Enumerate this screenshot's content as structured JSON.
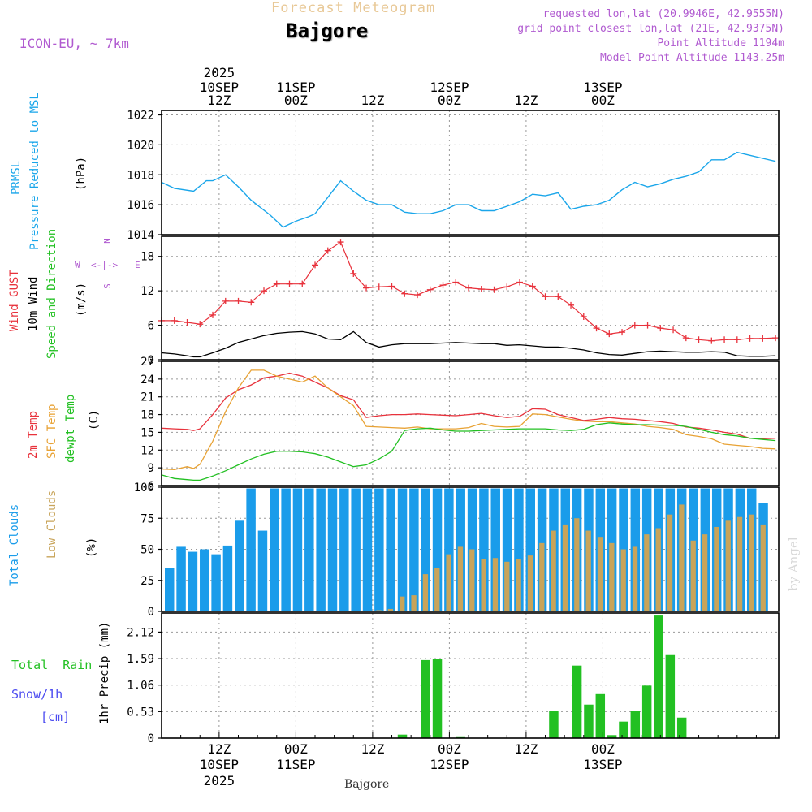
{
  "header": {
    "banner": "Forecast Meteogram",
    "location": "Bajgore",
    "model": "ICON-EU, ~ 7km",
    "info": [
      "requested lon,lat (20.9946E, 42.9555N)",
      "grid point closest lon,lat (21E, 42.9375N)",
      "Point Altitude 1194m",
      "Model Point Altitude 1143.25m"
    ]
  },
  "footer": {
    "location": "Bajgore",
    "watermark": "by Angel"
  },
  "colors": {
    "pressure": "#1aa6ea",
    "wind_speed": "#000000",
    "gust": "#e8323c",
    "temp": "#e8323c",
    "sfc_temp": "#e8a234",
    "dewpoint": "#22c022",
    "total_clouds": "#1a9cea",
    "low_clouds": "#c8a45a",
    "rain": "#22c022",
    "snow": "#4a4af0",
    "info_text": "#b05ad0",
    "banner": "#e8c896"
  },
  "time_axis": {
    "top": [
      {
        "lines": [
          "2025",
          "10SEP",
          "12Z"
        ]
      },
      {
        "lines": [
          "11SEP",
          "00Z"
        ]
      },
      {
        "lines": [
          "12Z"
        ]
      },
      {
        "lines": [
          "12SEP",
          "00Z"
        ]
      },
      {
        "lines": [
          "12Z"
        ]
      },
      {
        "lines": [
          "13SEP",
          "00Z"
        ]
      }
    ],
    "bottom": [
      {
        "lines": [
          "12Z",
          "10SEP",
          "2025"
        ]
      },
      {
        "lines": [
          "00Z",
          "11SEP"
        ]
      },
      {
        "lines": [
          "12Z"
        ]
      },
      {
        "lines": [
          "00Z",
          "12SEP"
        ]
      },
      {
        "lines": [
          "12Z"
        ]
      },
      {
        "lines": [
          "00Z",
          "13SEP"
        ]
      }
    ]
  },
  "panels": {
    "pressure": {
      "label_a": "PRMSL",
      "label_b": "Pressure Reduced to MSL",
      "unit": "(hPa)",
      "ticks": [
        "1014",
        "1016",
        "1018",
        "1020",
        "1022"
      ]
    },
    "wind": {
      "label_gust": "Wind GUST",
      "label_wind": "10m Wind",
      "label_dir": "Speed and Direction",
      "unit": "(m/s)",
      "ticks": [
        "0",
        "6",
        "12",
        "18"
      ],
      "compass": {
        "n": "N",
        "s": "S",
        "w": "W",
        "e": "E",
        "arrow": "<-|->"
      }
    },
    "temp": {
      "label_t": "2m Temp",
      "label_sfc": "SFC Temp",
      "label_dew": "dewpt Temp",
      "unit": "(C)",
      "ticks": [
        "6",
        "9",
        "12",
        "15",
        "18",
        "21",
        "24",
        "27"
      ]
    },
    "clouds": {
      "label_total": "Total Clouds",
      "label_low": "Low Clouds",
      "unit": "(%)",
      "ticks": [
        "0",
        "25",
        "50",
        "75",
        "100"
      ]
    },
    "precip": {
      "label_rain": "Total  Rain",
      "label_snow": "Snow/1h",
      "label_snow_unit": "[cm]",
      "label_axis": "1hr Precip (mm)",
      "ticks": [
        "0",
        "0.53",
        "1.06",
        "1.59",
        "2.12"
      ]
    }
  },
  "chart_data": [
    {
      "type": "line",
      "name": "pressure",
      "x_unit": "hours since 10SEP 03Z",
      "ylim": [
        1014,
        1022.3
      ],
      "series": [
        {
          "name": "PRMSL",
          "x": [
            0,
            2,
            5,
            7,
            8,
            10,
            12,
            14,
            17,
            19,
            21,
            23,
            24,
            26,
            28,
            30,
            32,
            34,
            36,
            38,
            40,
            42,
            44,
            46,
            48,
            50,
            52,
            54,
            56,
            58,
            60,
            62,
            64,
            66,
            68,
            70,
            72,
            74,
            76,
            78,
            80,
            82,
            84,
            86,
            88,
            90,
            92,
            94,
            96
          ],
          "y": [
            1017.5,
            1017.1,
            1016.9,
            1017.6,
            1017.6,
            1018.0,
            1017.2,
            1016.3,
            1015.3,
            1014.5,
            1014.9,
            1015.2,
            1015.4,
            1016.5,
            1017.6,
            1016.9,
            1016.3,
            1016.0,
            1016.0,
            1015.5,
            1015.4,
            1015.4,
            1015.6,
            1016.0,
            1016.0,
            1015.6,
            1015.6,
            1015.9,
            1016.2,
            1016.7,
            1016.6,
            1016.8,
            1015.7,
            1015.9,
            1016.0,
            1016.3,
            1017.0,
            1017.5,
            1017.2,
            1017.4,
            1017.7,
            1017.9,
            1018.2,
            1019.0,
            1019.0,
            1019.5,
            1019.3,
            1019.1,
            1018.9
          ]
        }
      ]
    },
    {
      "type": "line",
      "name": "wind",
      "ylim": [
        0,
        21.5
      ],
      "series": [
        {
          "name": "Wind GUST",
          "x": [
            0,
            2,
            4,
            6,
            8,
            10,
            12,
            14,
            16,
            18,
            20,
            22,
            24,
            26,
            28,
            30,
            32,
            34,
            36,
            38,
            40,
            42,
            44,
            46,
            48,
            50,
            52,
            54,
            56,
            58,
            60,
            62,
            64,
            66,
            68,
            70,
            72,
            74,
            76,
            78,
            80,
            82,
            84,
            86,
            88,
            90,
            92,
            94,
            96
          ],
          "y": [
            6.8,
            6.8,
            6.5,
            6.2,
            7.8,
            10.2,
            10.2,
            10.0,
            12.0,
            13.2,
            13.2,
            13.2,
            16.5,
            19.0,
            20.5,
            15.0,
            12.5,
            12.7,
            12.8,
            11.5,
            11.3,
            12.2,
            13.0,
            13.5,
            12.5,
            12.3,
            12.2,
            12.7,
            13.5,
            12.8,
            11.0,
            11.0,
            9.5,
            7.5,
            5.5,
            4.5,
            4.8,
            6.0,
            6.0,
            5.5,
            5.2,
            3.8,
            3.5,
            3.3,
            3.5,
            3.5,
            3.7,
            3.7,
            3.8
          ]
        },
        {
          "name": "10m Wind",
          "x": [
            0,
            2,
            4,
            5,
            6,
            8,
            10,
            12,
            14,
            16,
            18,
            20,
            22,
            24,
            26,
            28,
            30,
            32,
            34,
            36,
            38,
            40,
            42,
            44,
            46,
            48,
            50,
            52,
            54,
            56,
            58,
            60,
            62,
            64,
            66,
            68,
            70,
            72,
            74,
            76,
            78,
            80,
            82,
            84,
            86,
            88,
            90,
            92,
            94,
            96
          ],
          "y": [
            1.2,
            1.0,
            0.7,
            0.5,
            0.5,
            1.2,
            2.0,
            3.0,
            3.6,
            4.2,
            4.6,
            4.8,
            4.9,
            4.5,
            3.6,
            3.5,
            4.9,
            3.0,
            2.2,
            2.6,
            2.8,
            2.8,
            2.8,
            2.9,
            3.0,
            2.9,
            2.8,
            2.8,
            2.5,
            2.6,
            2.4,
            2.2,
            2.2,
            2.0,
            1.7,
            1.2,
            0.9,
            0.8,
            1.1,
            1.4,
            1.5,
            1.4,
            1.3,
            1.3,
            1.4,
            1.3,
            0.7,
            0.6,
            0.6,
            0.7
          ]
        }
      ]
    },
    {
      "type": "line",
      "name": "temperature",
      "ylim": [
        6,
        27
      ],
      "series": [
        {
          "name": "2m Temp",
          "x": [
            0,
            2,
            4,
            5,
            6,
            8,
            10,
            12,
            14,
            16,
            18,
            20,
            22,
            24,
            26,
            28,
            30,
            32,
            34,
            36,
            38,
            40,
            42,
            44,
            46,
            48,
            50,
            52,
            54,
            56,
            58,
            60,
            62,
            64,
            66,
            68,
            70,
            72,
            74,
            76,
            78,
            80,
            82,
            84,
            86,
            88,
            90,
            92,
            94,
            96
          ],
          "y": [
            15.7,
            15.6,
            15.5,
            15.3,
            15.6,
            18.0,
            20.8,
            22.2,
            23.0,
            24.2,
            24.5,
            25.0,
            24.5,
            23.5,
            22.5,
            21.2,
            20.5,
            17.5,
            17.8,
            18.0,
            18.0,
            18.1,
            18.0,
            17.9,
            17.8,
            18.0,
            18.2,
            17.8,
            17.5,
            17.7,
            19.0,
            18.9,
            18.0,
            17.5,
            17.0,
            17.2,
            17.5,
            17.3,
            17.2,
            17.0,
            16.8,
            16.5,
            15.9,
            15.7,
            15.4,
            15.0,
            14.7,
            14.0,
            13.9,
            14.0
          ]
        },
        {
          "name": "SFC Temp",
          "x": [
            0,
            2,
            4,
            5,
            6,
            8,
            10,
            12,
            14,
            16,
            18,
            20,
            22,
            24,
            26,
            28,
            30,
            32,
            34,
            36,
            38,
            40,
            42,
            44,
            46,
            48,
            50,
            52,
            54,
            56,
            58,
            60,
            62,
            64,
            66,
            68,
            70,
            72,
            74,
            76,
            78,
            80,
            82,
            84,
            86,
            88,
            90,
            92,
            94,
            96
          ],
          "y": [
            8.8,
            8.7,
            9.2,
            8.9,
            9.6,
            13.5,
            18.5,
            22.5,
            25.5,
            25.5,
            24.5,
            24.0,
            23.5,
            24.5,
            22.5,
            21.0,
            19.5,
            16.0,
            15.9,
            15.8,
            15.7,
            15.9,
            15.6,
            15.6,
            15.6,
            15.8,
            16.5,
            16.0,
            15.9,
            16.0,
            18.1,
            18.0,
            17.6,
            17.2,
            16.9,
            16.8,
            16.8,
            16.6,
            16.4,
            16.0,
            15.8,
            15.5,
            14.6,
            14.3,
            13.9,
            13.0,
            12.8,
            12.6,
            12.3,
            12.2
          ]
        },
        {
          "name": "dewpt Temp",
          "x": [
            0,
            2,
            4,
            5,
            6,
            8,
            10,
            12,
            14,
            16,
            18,
            20,
            22,
            24,
            26,
            28,
            30,
            32,
            34,
            36,
            38,
            40,
            42,
            44,
            46,
            48,
            50,
            52,
            54,
            56,
            58,
            60,
            62,
            64,
            66,
            68,
            70,
            72,
            74,
            76,
            78,
            80,
            82,
            84,
            86,
            88,
            90,
            92,
            94,
            96
          ],
          "y": [
            7.8,
            7.2,
            7.0,
            6.9,
            6.9,
            7.6,
            8.5,
            9.5,
            10.5,
            11.3,
            11.8,
            11.8,
            11.7,
            11.4,
            10.8,
            10.0,
            9.2,
            9.5,
            10.5,
            11.8,
            15.3,
            15.6,
            15.7,
            15.4,
            15.2,
            15.2,
            15.3,
            15.4,
            15.5,
            15.6,
            15.6,
            15.6,
            15.4,
            15.3,
            15.5,
            16.3,
            16.6,
            16.4,
            16.3,
            16.3,
            16.2,
            16.2,
            16.0,
            15.5,
            15.0,
            14.6,
            14.4,
            14.0,
            13.8,
            13.6
          ]
        }
      ]
    },
    {
      "type": "bar",
      "name": "clouds",
      "ylim": [
        0,
        100
      ],
      "series": [
        {
          "name": "Total Clouds",
          "x": [
            0,
            1,
            2,
            3,
            4,
            5,
            6,
            7,
            8,
            9,
            10,
            11,
            12,
            13,
            14,
            15,
            16,
            17,
            18,
            19,
            20,
            21,
            22,
            23,
            24,
            25,
            26,
            27,
            28,
            29,
            30,
            31,
            32,
            33,
            34,
            35,
            36,
            37,
            38,
            39,
            40,
            41,
            42,
            43,
            44,
            45,
            46,
            47,
            48,
            49,
            50,
            51
          ],
          "values": [
            35,
            52,
            48,
            50,
            46,
            53,
            73,
            99,
            65,
            99,
            99,
            99,
            99,
            99,
            99,
            99,
            99,
            99,
            99,
            99,
            99,
            99,
            99,
            99,
            99,
            99,
            99,
            99,
            99,
            99,
            99,
            99,
            99,
            99,
            99,
            99,
            99,
            99,
            99,
            99,
            99,
            99,
            99,
            99,
            99,
            99,
            99,
            99,
            99,
            99,
            99,
            87
          ]
        },
        {
          "name": "Low Clouds",
          "x": [
            17,
            18,
            19,
            20,
            21,
            22,
            23,
            24,
            25,
            26,
            27,
            28,
            29,
            30,
            31,
            32,
            33,
            34,
            35,
            36,
            37,
            38,
            39,
            40,
            41,
            42,
            43,
            44,
            45,
            46,
            47,
            48,
            49,
            50,
            51
          ],
          "values": [
            0,
            1,
            2,
            12,
            13,
            30,
            35,
            46,
            52,
            50,
            42,
            43,
            40,
            42,
            45,
            55,
            65,
            70,
            75,
            65,
            60,
            55,
            50,
            52,
            62,
            67,
            78,
            86,
            57,
            62,
            68,
            73,
            76,
            78,
            70
          ]
        }
      ]
    },
    {
      "type": "bar",
      "name": "precipitation",
      "ylim": [
        0,
        2.5
      ],
      "series": [
        {
          "name": "1hr Precip",
          "x": [
            20,
            22,
            23,
            25,
            33,
            35,
            36,
            37,
            38,
            39,
            40,
            41,
            42,
            43,
            44
          ],
          "values": [
            0.07,
            1.56,
            1.58,
            0.02,
            0.55,
            1.45,
            0.67,
            0.88,
            0.06,
            0.33,
            0.55,
            1.05,
            2.45,
            1.66,
            0.41
          ]
        }
      ]
    }
  ]
}
